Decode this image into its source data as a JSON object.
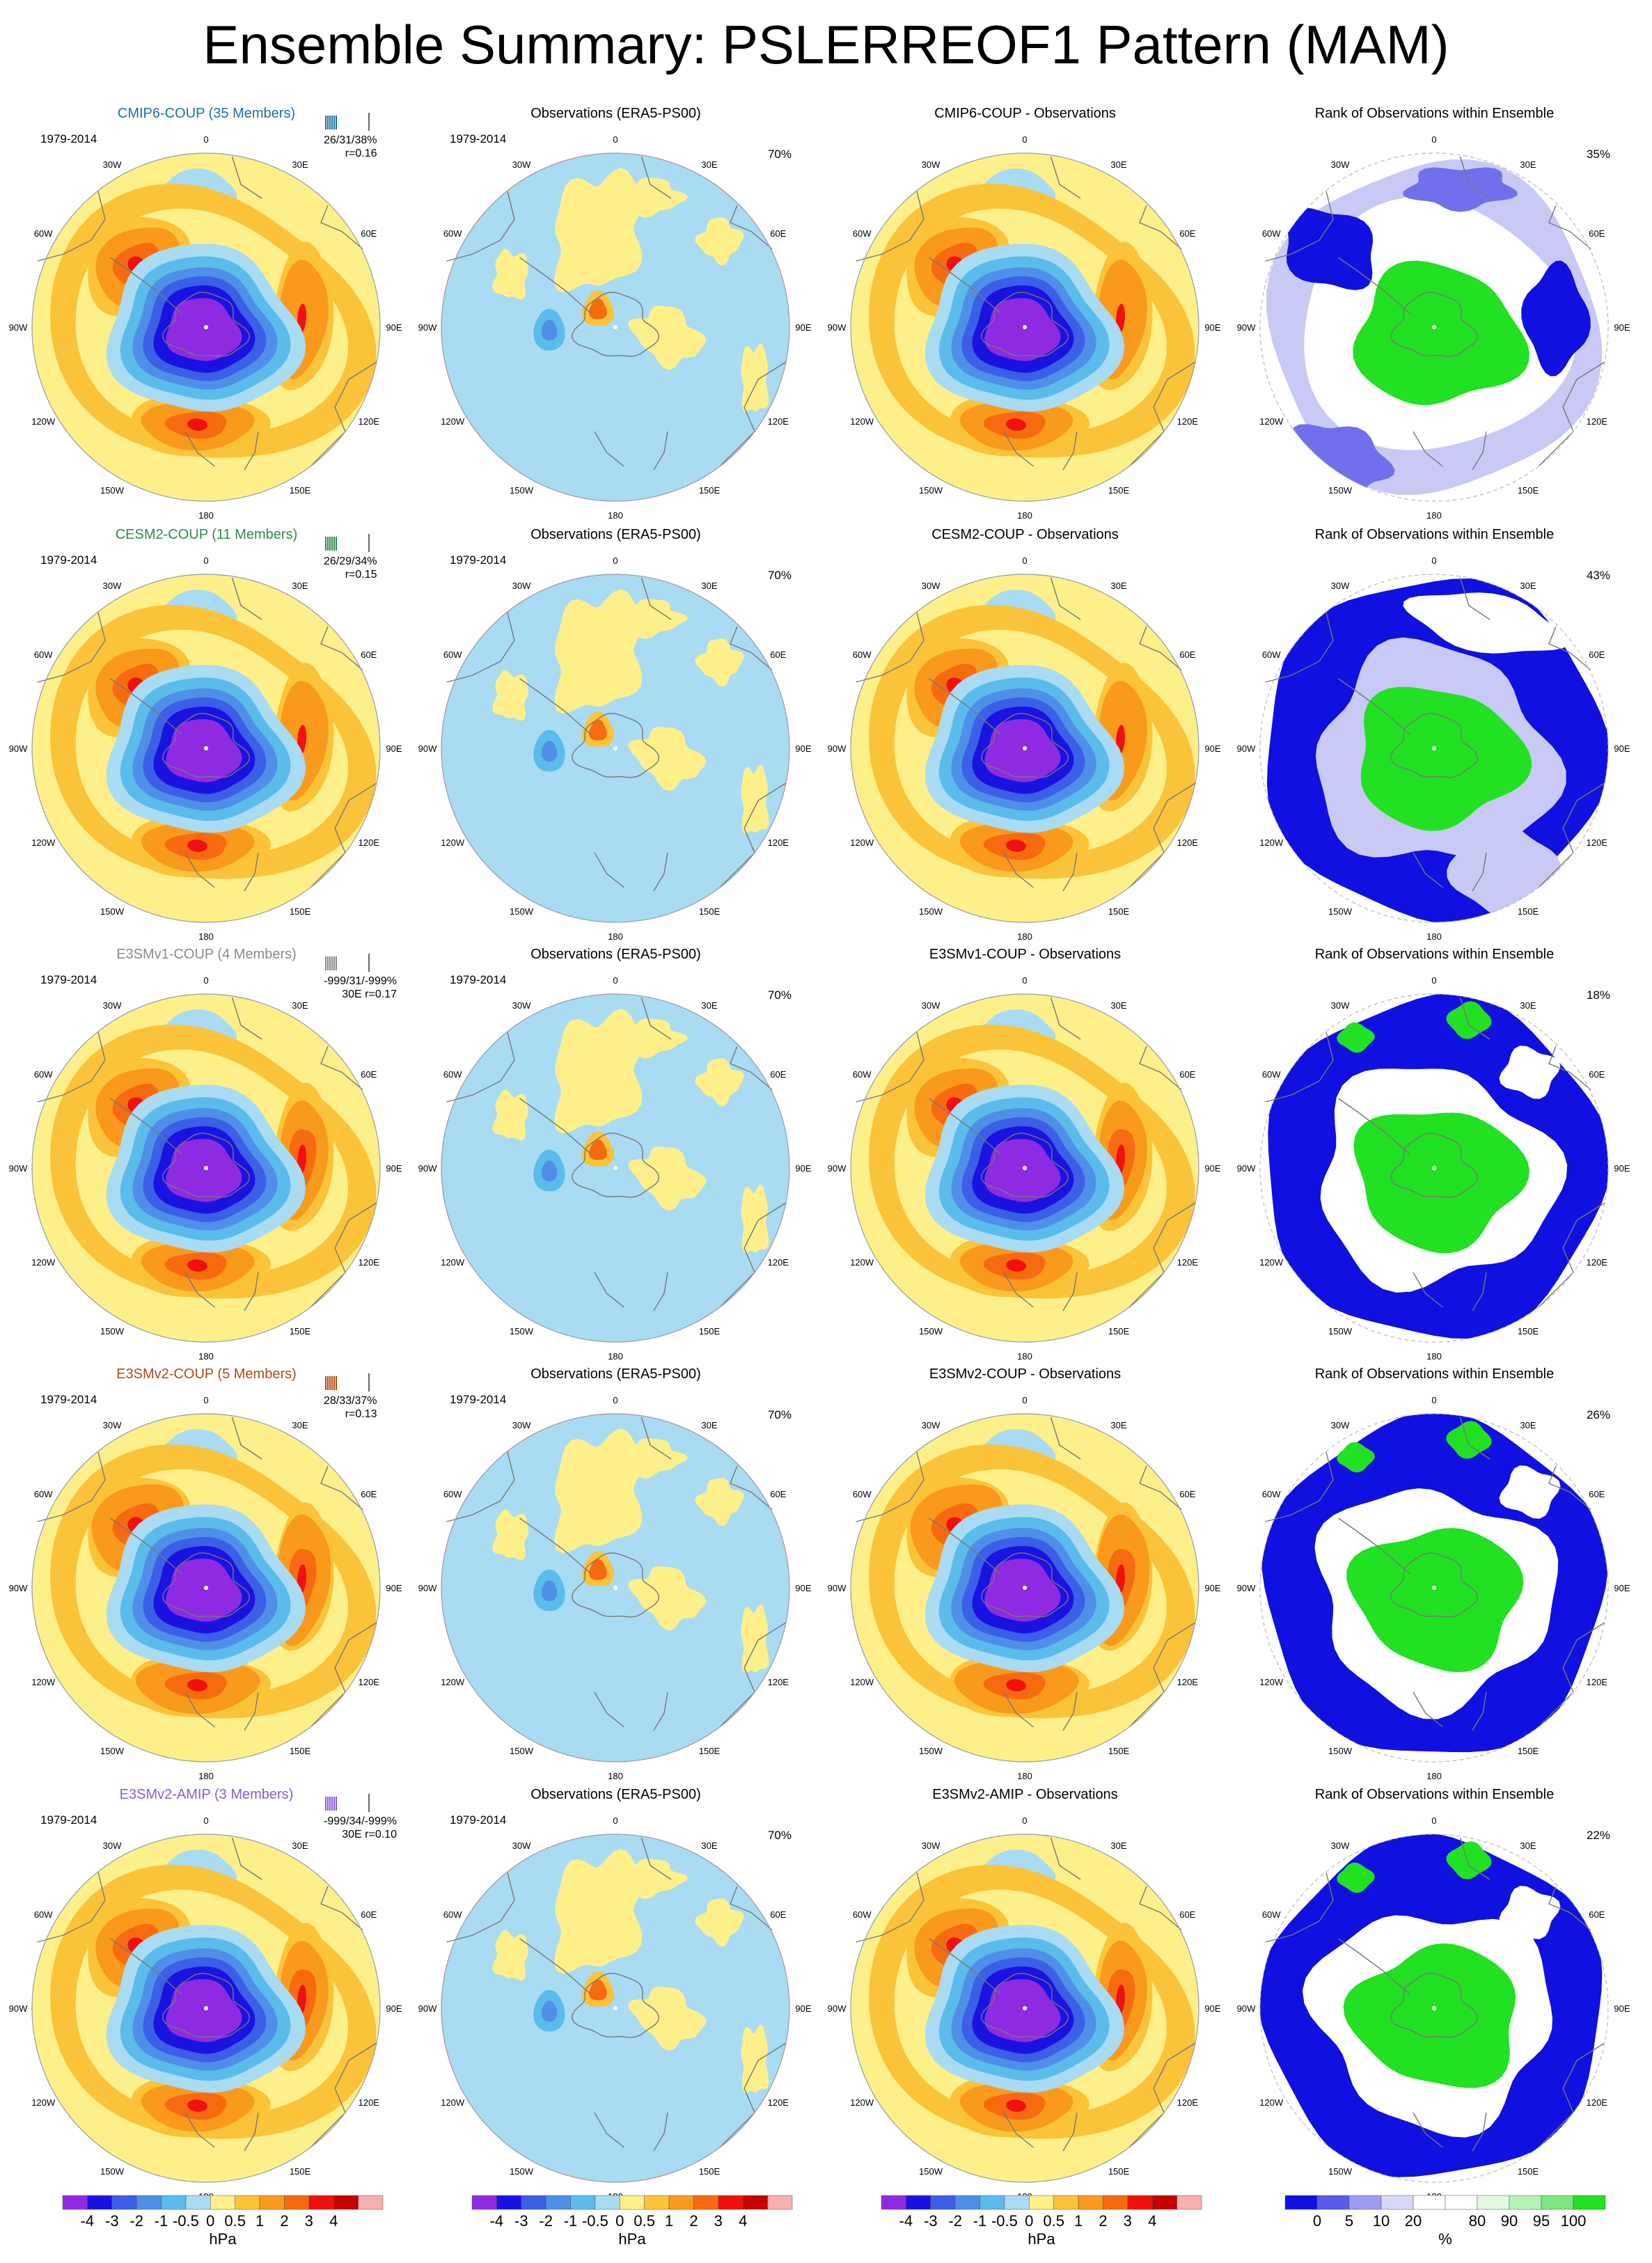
{
  "title": "Ensemble Summary: PSLERREOF1 Pattern (MAM)",
  "period": "1979-2014",
  "obs_title": "Observations (ERA5-PS00)",
  "obs_pct": "70%",
  "rank_title": "Rank of Observations within Ensemble",
  "lon_labels": [
    "0",
    "30E",
    "60E",
    "90E",
    "120E",
    "150E",
    "180",
    "150W",
    "120W",
    "90W",
    "60W",
    "30W"
  ],
  "rows": [
    {
      "model": "CMIP6-COUP (35 Members)",
      "color": "#1f6fa0",
      "stats1": "26/31/38%",
      "stats2": "r=0.16",
      "diff": "CMIP6-COUP - Observations",
      "rank_pct": "35%",
      "variant": 0
    },
    {
      "model": "CESM2-COUP (11 Members)",
      "color": "#2f8a4a",
      "stats1": "26/29/34%",
      "stats2": "r=0.15",
      "diff": "CESM2-COUP - Observations",
      "rank_pct": "43%",
      "variant": 1
    },
    {
      "model": "E3SMv1-COUP (4 Members)",
      "color": "#8a8a8a",
      "stats1": "-999/31/-999%",
      "stats2": "30E r=0.17",
      "diff": "E3SMv1-COUP - Observations",
      "rank_pct": "18%",
      "variant": 2
    },
    {
      "model": "E3SMv2-COUP (5 Members)",
      "color": "#b04a1a",
      "stats1": "28/33/37%",
      "stats2": "r=0.13",
      "diff": "E3SMv2-COUP - Observations",
      "rank_pct": "26%",
      "variant": 3
    },
    {
      "model": "E3SMv2-AMIP (3 Members)",
      "color": "#8a5ad8",
      "stats1": "-999/34/-999%",
      "stats2": "30E r=0.10",
      "diff": "E3SMv2-AMIP - Observations",
      "rank_pct": "22%",
      "variant": 4
    }
  ],
  "hpa_colorbar": {
    "colors": [
      "#8e2be2",
      "#1a12e0",
      "#3b5fe6",
      "#4f8fe8",
      "#5bbbeb",
      "#a9dbf3",
      "#fdf08a",
      "#fbc33a",
      "#f99a1d",
      "#f76b10",
      "#f01010",
      "#c40000",
      "#f7b0b0"
    ],
    "ticks": [
      "-4",
      "-3",
      "-2",
      "-1",
      "-0.5",
      "0",
      "0.5",
      "1",
      "2",
      "3",
      "4"
    ],
    "unit": "hPa"
  },
  "rank_colorbar": {
    "colors": [
      "#1010e0",
      "#5a5aea",
      "#9c9cf2",
      "#d8d8fa",
      "#ffffff",
      "#ffffff",
      "#dff8df",
      "#b5f2b5",
      "#7ee67e",
      "#22e022"
    ],
    "ticks": [
      "0",
      "5",
      "10",
      "20",
      "80",
      "90",
      "95",
      "100"
    ],
    "unit": "%"
  }
}
